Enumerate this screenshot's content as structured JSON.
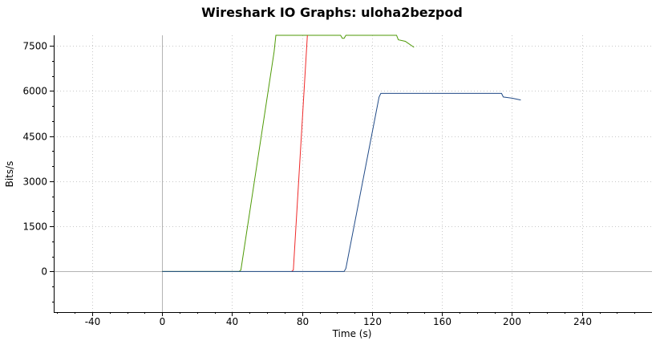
{
  "chart_data": {
    "type": "line",
    "title": "Wireshark IO Graphs: uloha2bezpod",
    "xlabel": "Time (s)",
    "ylabel": "Bits/s",
    "xlim": [
      -62,
      280
    ],
    "ylim": [
      -1350,
      7850
    ],
    "x_ticks": [
      "-40",
      "0",
      "40",
      "80",
      "120",
      "160",
      "200",
      "240"
    ],
    "x_tick_values": [
      -40,
      0,
      40,
      80,
      120,
      160,
      200,
      240
    ],
    "y_ticks": [
      "0",
      "1500",
      "3000",
      "4500",
      "6000",
      "7500"
    ],
    "y_tick_values": [
      0,
      1500,
      3000,
      4500,
      6000,
      7500
    ],
    "grid": true,
    "series": [
      {
        "color": "#4e9a06",
        "points": [
          [
            0,
            0
          ],
          [
            44,
            0
          ],
          [
            45,
            50
          ],
          [
            64,
            7300
          ],
          [
            65,
            7850
          ],
          [
            102,
            7850
          ],
          [
            103,
            7750
          ],
          [
            104,
            7750
          ],
          [
            105,
            7850
          ],
          [
            134,
            7850
          ],
          [
            135,
            7700
          ],
          [
            139,
            7650
          ],
          [
            144,
            7450
          ]
        ]
      },
      {
        "color": "#ef2929",
        "points": [
          [
            74,
            0
          ],
          [
            75,
            50
          ],
          [
            83,
            7850
          ]
        ]
      },
      {
        "color": "#204a87",
        "points": [
          [
            0,
            0
          ],
          [
            104,
            0
          ],
          [
            105,
            100
          ],
          [
            124,
            5800
          ],
          [
            125,
            5920
          ],
          [
            194,
            5920
          ],
          [
            195,
            5800
          ],
          [
            200,
            5760
          ],
          [
            205,
            5700
          ]
        ]
      }
    ]
  }
}
